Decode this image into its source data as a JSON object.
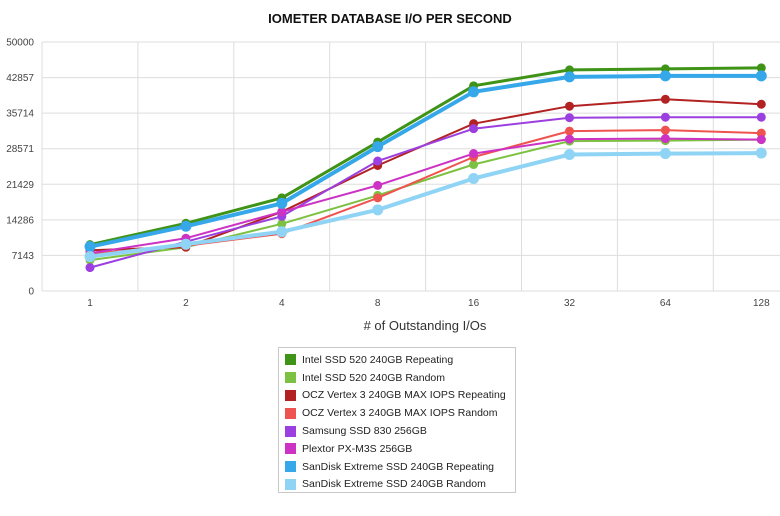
{
  "chart_data": {
    "type": "line",
    "title": "IOMETER DATABASE I/O PER SECOND",
    "xlabel": "# of Outstanding I/Os",
    "ylabel": "",
    "categories": [
      "1",
      "2",
      "4",
      "8",
      "16",
      "32",
      "64",
      "128"
    ],
    "y_ticks": [
      "0",
      "7143",
      "14286",
      "21429",
      "28571",
      "35714",
      "42857",
      "50000"
    ],
    "ylim": [
      0,
      50000
    ],
    "grid": true,
    "legend_position": "bottom-center",
    "series": [
      {
        "name": "Intel SSD 520 240GB Repeating",
        "color": "#3f9418",
        "values": [
          9300,
          13600,
          18700,
          29900,
          41200,
          44400,
          44600,
          44800
        ]
      },
      {
        "name": "Intel SSD 520 240GB Random",
        "color": "#7cc142",
        "values": [
          6200,
          8800,
          13500,
          19200,
          25400,
          30100,
          30200,
          30400
        ]
      },
      {
        "name": "OCZ Vertex 3 240GB MAX IOPS Repeating",
        "color": "#b22222",
        "values": [
          8200,
          8800,
          15900,
          25200,
          33600,
          37100,
          38500,
          37500
        ]
      },
      {
        "name": "OCZ Vertex 3 240GB MAX IOPS Random",
        "color": "#ef5350",
        "values": [
          7500,
          9100,
          11500,
          18700,
          26900,
          32100,
          32300,
          31700
        ]
      },
      {
        "name": "Samsung SSD 830 256GB",
        "color": "#9c3fe0",
        "values": [
          4700,
          9900,
          15000,
          26100,
          32600,
          34800,
          34900,
          34900
        ]
      },
      {
        "name": "Plextor PX-M3S 256GB",
        "color": "#cc33c4",
        "values": [
          7600,
          10600,
          15900,
          21200,
          27600,
          30500,
          30600,
          30400
        ]
      },
      {
        "name": "SanDisk Extreme SSD 240GB Repeating",
        "color": "#36a8ea",
        "values": [
          8900,
          13000,
          17600,
          29000,
          40000,
          43000,
          43200,
          43200
        ]
      },
      {
        "name": "SanDisk Extreme SSD 240GB Random",
        "color": "#8fd4f5",
        "values": [
          6900,
          9400,
          11900,
          16300,
          22600,
          27400,
          27600,
          27700
        ]
      }
    ]
  }
}
